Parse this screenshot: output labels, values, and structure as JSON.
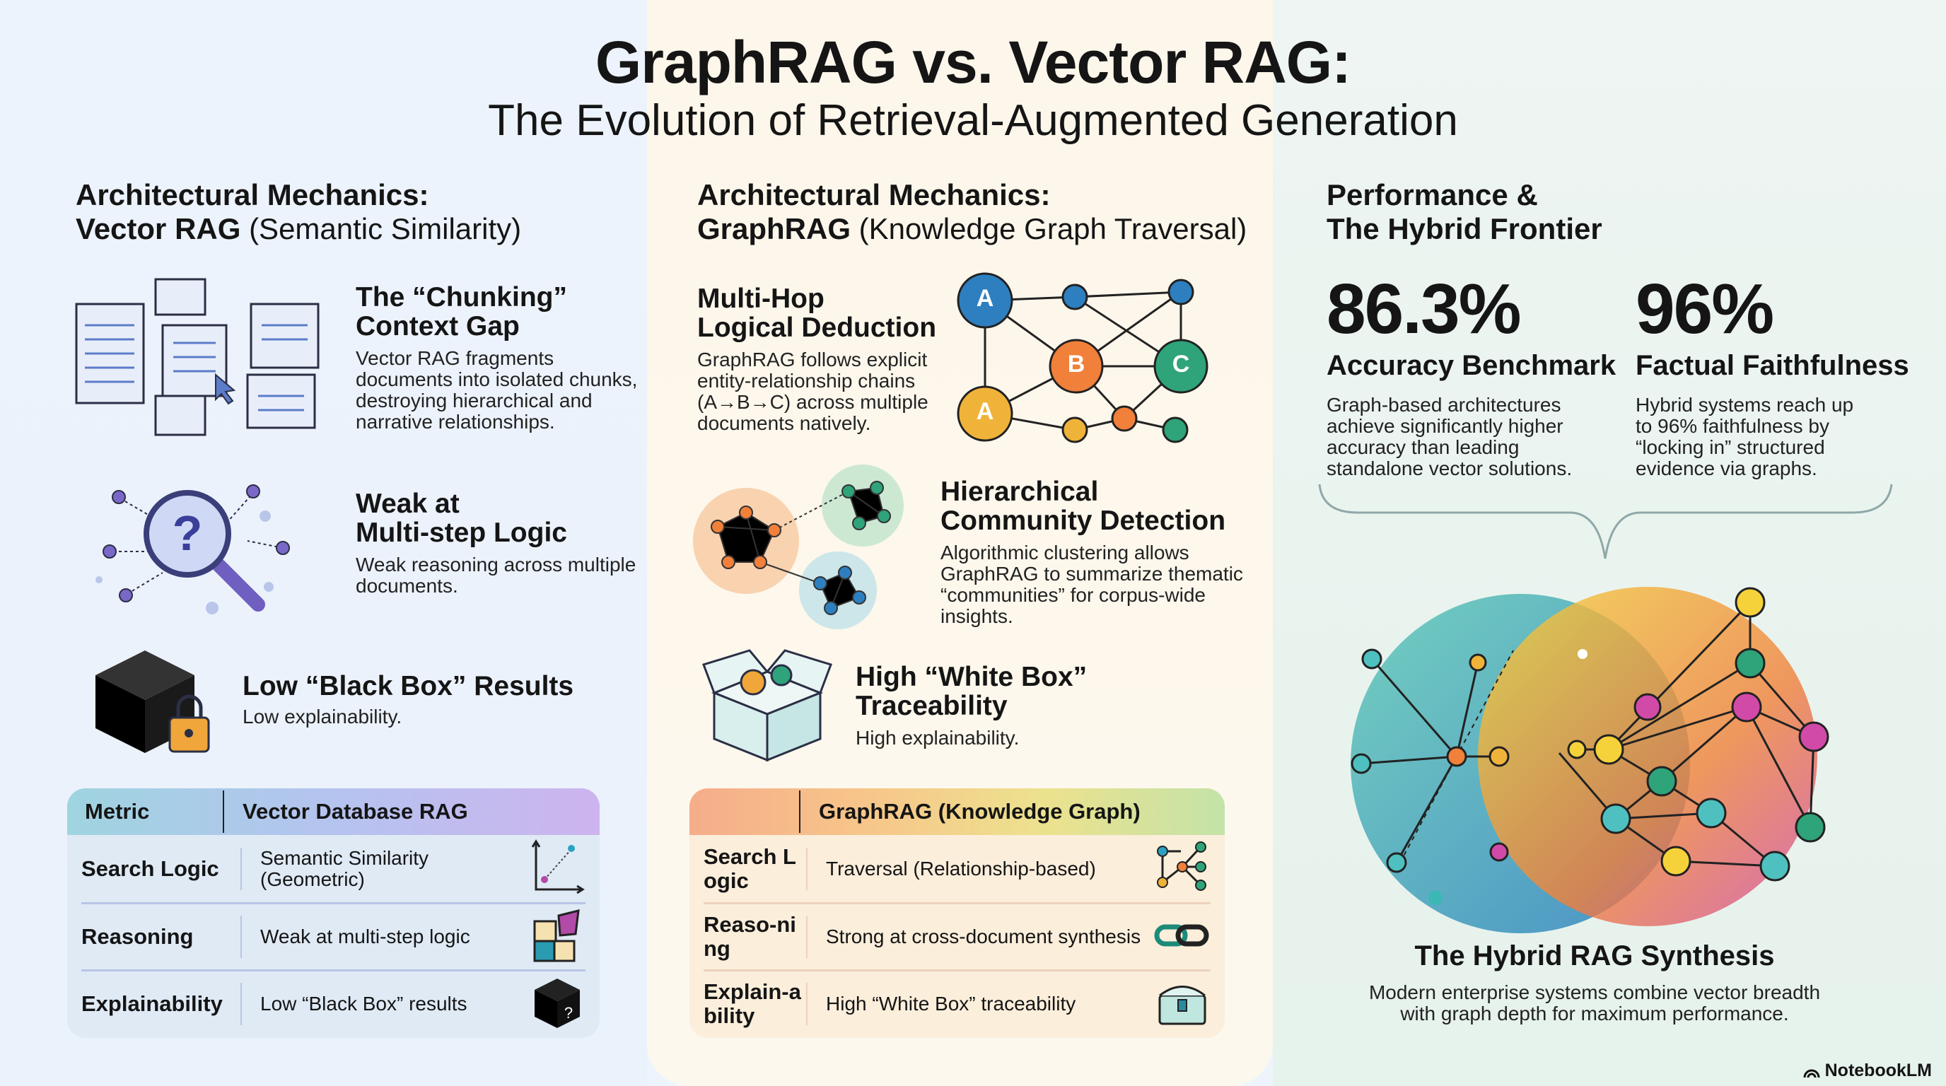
{
  "header": {
    "title": "GraphRAG vs. Vector RAG:",
    "subtitle": "The Evolution of Retrieval-Augmented Generation"
  },
  "vector": {
    "heading_line1": "Architectural Mechanics:",
    "heading_bold": "Vector RAG",
    "heading_rest": " (Semantic Similarity)",
    "sections": [
      {
        "title_l1": "The “Chunking”",
        "title_l2": "Context Gap",
        "body": "Vector RAG fragments documents into isolated chunks, destroying hierarchical and narrative relationships."
      },
      {
        "title_l1": "Weak at",
        "title_l2": "Multi-step Logic",
        "body": "Weak reasoning across multiple documents."
      },
      {
        "title_l1": "Low “Black Box” Results",
        "title_l2": "",
        "body": "Low explainability."
      }
    ],
    "table": {
      "headers": [
        "Metric",
        "Vector Database RAG"
      ],
      "rows": [
        [
          "Search Logic",
          "Semantic Similarity (Geometric)",
          "scatter-axis-icon"
        ],
        [
          "Reasoning",
          "Weak at multi-step logic",
          "puzzle-icon"
        ],
        [
          "Explainability",
          "Low “Black Box” results",
          "black-box-question-icon"
        ]
      ]
    }
  },
  "graph": {
    "heading_line1": "Architectural Mechanics:",
    "heading_bold": "GraphRAG",
    "heading_rest": " (Knowledge Graph Traversal)",
    "sections": [
      {
        "title_l1": "Multi-Hop",
        "title_l2": "Logical Deduction",
        "body": "GraphRAG follows explicit entity-relationship chains (A→B→C) across multiple documents natively."
      },
      {
        "title_l1": "Hierarchical",
        "title_l2": "Community Detection",
        "body": "Algorithmic clustering allows GraphRAG to summarize thematic “communities” for corpus-wide insights."
      },
      {
        "title_l1": "High “White Box”",
        "title_l2": "Traceability",
        "body": "High explainability."
      }
    ],
    "node_labels": [
      "A",
      "B",
      "C",
      "A"
    ],
    "table": {
      "headers": [
        "",
        "GraphRAG (Knowledge Graph)"
      ],
      "rows": [
        [
          "Search Logic",
          "Traversal (Relationship-based)",
          "graph-traversal-icon"
        ],
        [
          "Reaso-ning",
          "Strong at cross-document synthesis",
          "chain-link-icon"
        ],
        [
          "Explain-ability",
          "High “White Box” traceability",
          "open-chest-icon"
        ]
      ]
    }
  },
  "performance": {
    "heading_l1": "Performance &",
    "heading_l2": "The Hybrid Frontier",
    "stats": [
      {
        "value": "86.3%",
        "label": "Accuracy Benchmark",
        "body": "Graph-based architectures achieve significantly higher accuracy than leading standalone vector solutions."
      },
      {
        "value": "96%",
        "label": "Factual Faithfulness",
        "body": "Hybrid systems reach up to 96% faithfulness by “locking in” structured evidence via graphs."
      }
    ],
    "synthesis_title": "The Hybrid RAG Synthesis",
    "synthesis_body": "Modern enterprise systems combine vector breadth with graph depth for maximum performance."
  },
  "footer": {
    "brand": "NotebookLM"
  },
  "colors": {
    "blue": "#2d7fc0",
    "orange": "#f0803a",
    "green": "#2fa37a",
    "yellow": "#f0b33a",
    "teal": "#3bb8b3",
    "magenta": "#d24aa8"
  }
}
